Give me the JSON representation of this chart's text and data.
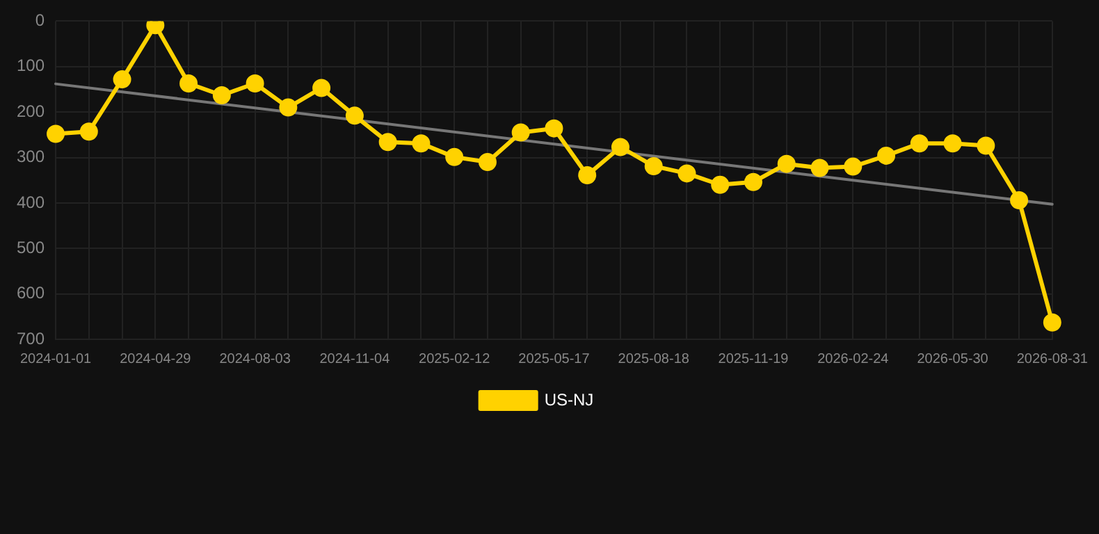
{
  "chart_data": {
    "type": "line",
    "categories": [
      "2024-01-01",
      null,
      null,
      "2024-04-29",
      null,
      null,
      "2024-08-03",
      null,
      null,
      "2024-11-04",
      null,
      null,
      "2025-02-12",
      null,
      null,
      "2025-05-17",
      null,
      null,
      "2025-08-18",
      null,
      null,
      "2025-11-19",
      null,
      null,
      "2026-02-24",
      null,
      null,
      "2026-05-30",
      null,
      null,
      "2026-08-31"
    ],
    "series": [
      {
        "name": "US-NJ",
        "color": "#ffd200",
        "marker": "circle",
        "values": [
          248,
          243,
          128,
          9,
          137,
          163,
          137,
          190,
          147,
          208,
          266,
          269,
          299,
          310,
          245,
          236,
          339,
          277,
          319,
          335,
          360,
          354,
          314,
          323,
          320,
          296,
          269,
          269,
          274,
          394,
          663
        ]
      },
      {
        "type": "line",
        "color": "#777777",
        "marker": "none",
        "values": [
          138,
          null,
          null,
          null,
          null,
          null,
          null,
          null,
          null,
          null,
          null,
          null,
          null,
          null,
          null,
          null,
          null,
          null,
          null,
          null,
          null,
          null,
          null,
          null,
          null,
          null,
          null,
          null,
          null,
          null,
          403
        ]
      }
    ],
    "ylim": [
      700,
      0
    ],
    "yticks": [
      0,
      100,
      200,
      300,
      400,
      500,
      600,
      700
    ],
    "grid": true,
    "legend": "bottom"
  }
}
